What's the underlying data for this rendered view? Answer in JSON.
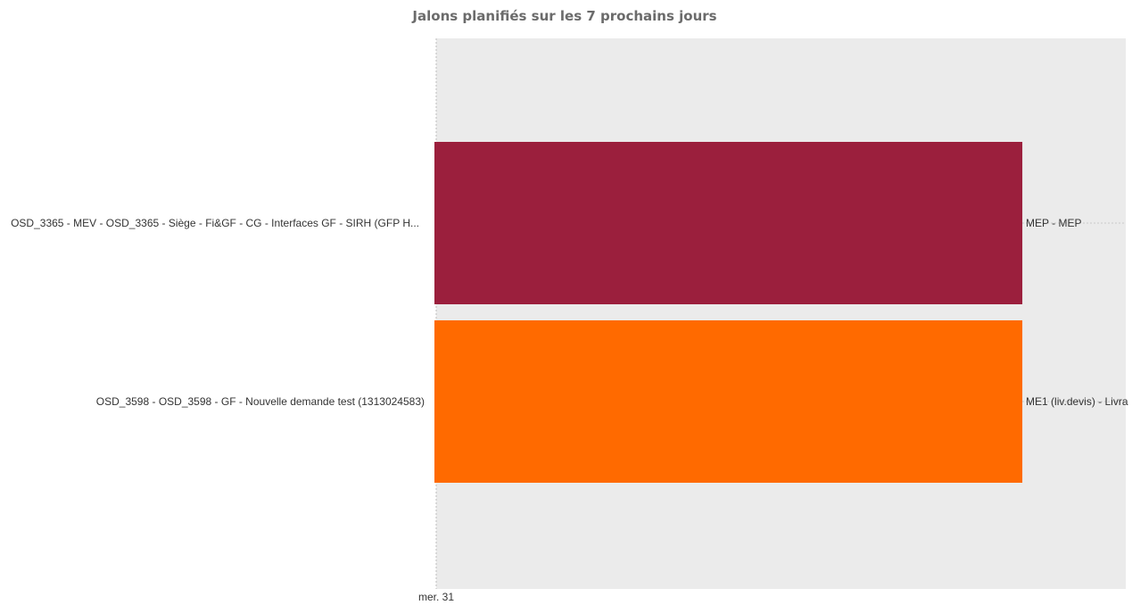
{
  "chart_data": {
    "type": "bar",
    "orientation": "horizontal",
    "title": "Jalons planifiés sur les 7 prochains jours",
    "categories": [
      "OSD_3365 - MEV - OSD_3365 - Siège - Fi&GF - CG - Interfaces GF - SIRH (GFP H...",
      "OSD_3598 - OSD_3598 - GF - Nouvelle demande test (1313024583)"
    ],
    "bar_labels": [
      "MEP - MEP",
      "ME1 (liv.devis) - Livra"
    ],
    "colors": [
      "#9b1f3d",
      "#ff6a00"
    ],
    "start_fraction": [
      0.0,
      0.0
    ],
    "end_fraction": [
      0.85,
      0.85
    ],
    "x_ticks": [
      "mer. 31"
    ],
    "plot_background": "#ebebeb",
    "grid": false,
    "legend": "none"
  }
}
